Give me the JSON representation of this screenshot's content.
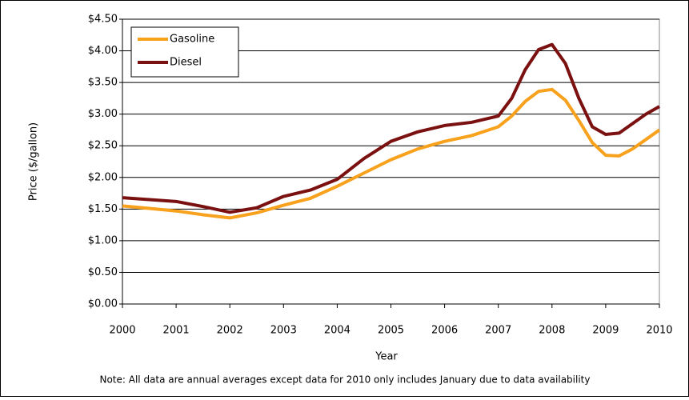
{
  "chart_data": {
    "type": "line",
    "x_label": "Year",
    "y_label": "Price ($/gallon)",
    "note": "Note: All data are annual averages except data for 2010 only includes January due to data availability",
    "x": [
      2000,
      2000.5,
      2001,
      2001.5,
      2002,
      2002.5,
      2003,
      2003.5,
      2004,
      2004.5,
      2005,
      2005.5,
      2006,
      2006.5,
      2007,
      2007.25,
      2007.5,
      2007.75,
      2008,
      2008.25,
      2008.5,
      2008.75,
      2009,
      2009.25,
      2009.5,
      2009.75,
      2010
    ],
    "series": [
      {
        "name": "Gasoline",
        "color": "#f7a11d",
        "values": [
          1.55,
          1.51,
          1.47,
          1.41,
          1.36,
          1.44,
          1.56,
          1.67,
          1.86,
          2.07,
          2.28,
          2.45,
          2.57,
          2.66,
          2.8,
          2.97,
          3.2,
          3.36,
          3.39,
          3.22,
          2.9,
          2.55,
          2.35,
          2.34,
          2.45,
          2.6,
          2.75
        ]
      },
      {
        "name": "Diesel",
        "color": "#7b1010",
        "values": [
          1.68,
          1.65,
          1.62,
          1.54,
          1.45,
          1.52,
          1.7,
          1.8,
          1.97,
          2.3,
          2.57,
          2.72,
          2.82,
          2.87,
          2.97,
          3.25,
          3.7,
          4.02,
          4.1,
          3.8,
          3.25,
          2.8,
          2.68,
          2.7,
          2.85,
          3.0,
          3.12
        ]
      }
    ],
    "xlim": [
      2000,
      2010
    ],
    "xticks": [
      2000,
      2001,
      2002,
      2003,
      2004,
      2005,
      2006,
      2007,
      2008,
      2009,
      2010
    ],
    "ylim": [
      0,
      4.5
    ],
    "yticks": [
      {
        "value": 0,
        "label": "$0.00"
      },
      {
        "value": 0.5,
        "label": "$0.50"
      },
      {
        "value": 1,
        "label": "$1.00"
      },
      {
        "value": 1.5,
        "label": "$1.50"
      },
      {
        "value": 2,
        "label": "$2.00"
      },
      {
        "value": 2.5,
        "label": "$2.50"
      },
      {
        "value": 3,
        "label": "$3.00"
      },
      {
        "value": 3.5,
        "label": "$3.50"
      },
      {
        "value": 4,
        "label": "$4.00"
      },
      {
        "value": 4.5,
        "label": "$4.50"
      }
    ],
    "grid": true,
    "legend": "top-left"
  }
}
